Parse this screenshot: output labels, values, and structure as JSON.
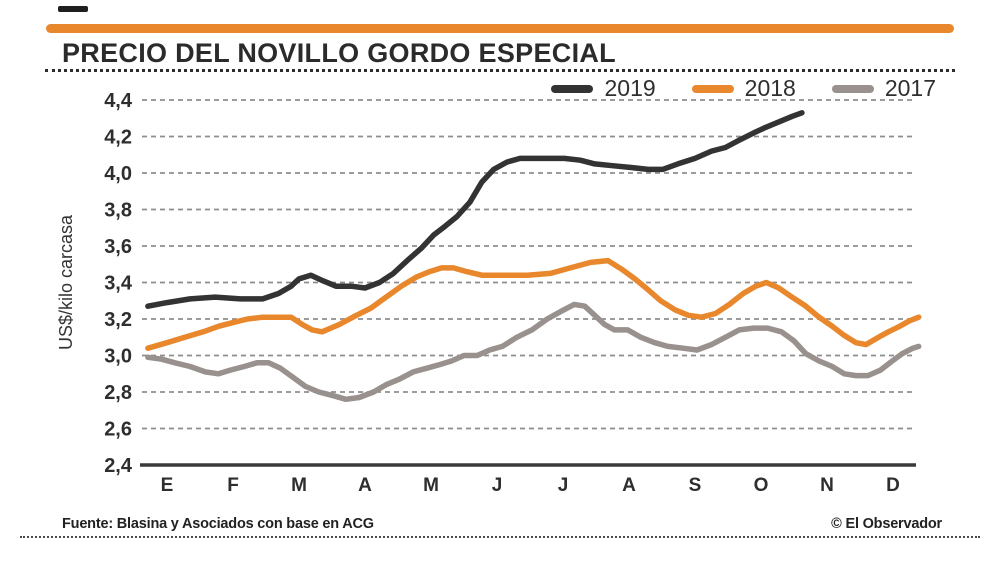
{
  "header": {
    "title": "PRECIO DEL NOVILLO GORDO ESPECIAL"
  },
  "theme": {
    "accent": "#E8872C",
    "grid_color": "#8e8e8e",
    "text_color": "#2e2e2e"
  },
  "footer": {
    "source": "Fuente: Blasina y Asociados con base en ACG",
    "credit": "© El Observador"
  },
  "chart_data": {
    "type": "line",
    "title": "PRECIO DEL NOVILLO GORDO ESPECIAL",
    "ylabel": "US$/kilo carcasa",
    "ylim": [
      2.4,
      4.4
    ],
    "grid": "horizontal dashed",
    "legend_position": "top-right",
    "x_unit": "month index (0 = E/enero ... 11 = D/diciembre)",
    "x_tick_labels": [
      "E",
      "F",
      "M",
      "A",
      "M",
      "J",
      "J",
      "A",
      "S",
      "O",
      "N",
      "D"
    ],
    "y_ticks": [
      {
        "label": "4,4",
        "value": 4.4
      },
      {
        "label": "4,2",
        "value": 4.2
      },
      {
        "label": "4,0",
        "value": 4.0
      },
      {
        "label": "3,8",
        "value": 3.8
      },
      {
        "label": "3,6",
        "value": 3.6
      },
      {
        "label": "3,4",
        "value": 3.4
      },
      {
        "label": "3,2",
        "value": 3.2
      },
      {
        "label": "3,0",
        "value": 3.0
      },
      {
        "label": "2,8",
        "value": 2.8
      },
      {
        "label": "2,6",
        "value": 2.6
      },
      {
        "label": "2,4",
        "value": 2.4
      }
    ],
    "series": [
      {
        "name": "2019",
        "color": "#333333",
        "points": [
          [
            -0.29,
            3.27
          ],
          [
            0,
            3.29
          ],
          [
            0.35,
            3.31
          ],
          [
            0.73,
            3.32
          ],
          [
            1.11,
            3.31
          ],
          [
            1.45,
            3.31
          ],
          [
            1.69,
            3.34
          ],
          [
            1.88,
            3.38
          ],
          [
            2,
            3.42
          ],
          [
            2.18,
            3.44
          ],
          [
            2.36,
            3.41
          ],
          [
            2.56,
            3.38
          ],
          [
            2.79,
            3.38
          ],
          [
            3,
            3.37
          ],
          [
            3.22,
            3.4
          ],
          [
            3.43,
            3.45
          ],
          [
            3.64,
            3.52
          ],
          [
            3.86,
            3.59
          ],
          [
            4.04,
            3.66
          ],
          [
            4.22,
            3.71
          ],
          [
            4.39,
            3.76
          ],
          [
            4.59,
            3.84
          ],
          [
            4.77,
            3.95
          ],
          [
            4.95,
            4.02
          ],
          [
            5.15,
            4.06
          ],
          [
            5.35,
            4.08
          ],
          [
            5.69,
            4.08
          ],
          [
            6.02,
            4.08
          ],
          [
            6.26,
            4.07
          ],
          [
            6.48,
            4.05
          ],
          [
            6.75,
            4.04
          ],
          [
            7.03,
            4.03
          ],
          [
            7.29,
            4.02
          ],
          [
            7.51,
            4.02
          ],
          [
            7.74,
            4.05
          ],
          [
            8,
            4.08
          ],
          [
            8.25,
            4.12
          ],
          [
            8.46,
            4.14
          ],
          [
            8.67,
            4.18
          ],
          [
            8.89,
            4.22
          ],
          [
            9.07,
            4.25
          ],
          [
            9.27,
            4.28
          ],
          [
            9.47,
            4.31
          ],
          [
            9.62,
            4.33
          ]
        ]
      },
      {
        "name": "2018",
        "color": "#E8872C",
        "points": [
          [
            -0.29,
            3.04
          ],
          [
            0,
            3.07
          ],
          [
            0.27,
            3.1
          ],
          [
            0.55,
            3.13
          ],
          [
            0.78,
            3.16
          ],
          [
            1,
            3.18
          ],
          [
            1.22,
            3.2
          ],
          [
            1.45,
            3.21
          ],
          [
            1.69,
            3.21
          ],
          [
            1.88,
            3.21
          ],
          [
            2.05,
            3.17
          ],
          [
            2.2,
            3.14
          ],
          [
            2.35,
            3.13
          ],
          [
            2.61,
            3.17
          ],
          [
            2.87,
            3.22
          ],
          [
            3.09,
            3.26
          ],
          [
            3.32,
            3.32
          ],
          [
            3.55,
            3.38
          ],
          [
            3.78,
            3.43
          ],
          [
            3.98,
            3.46
          ],
          [
            4.16,
            3.48
          ],
          [
            4.34,
            3.48
          ],
          [
            4.54,
            3.46
          ],
          [
            4.77,
            3.44
          ],
          [
            5.08,
            3.44
          ],
          [
            5.46,
            3.44
          ],
          [
            5.81,
            3.45
          ],
          [
            6.11,
            3.48
          ],
          [
            6.42,
            3.51
          ],
          [
            6.68,
            3.52
          ],
          [
            6.9,
            3.47
          ],
          [
            7.09,
            3.42
          ],
          [
            7.29,
            3.36
          ],
          [
            7.48,
            3.3
          ],
          [
            7.7,
            3.25
          ],
          [
            7.9,
            3.22
          ],
          [
            8.1,
            3.21
          ],
          [
            8.31,
            3.23
          ],
          [
            8.52,
            3.28
          ],
          [
            8.73,
            3.34
          ],
          [
            8.92,
            3.38
          ],
          [
            9.08,
            3.4
          ],
          [
            9.27,
            3.37
          ],
          [
            9.47,
            3.32
          ],
          [
            9.68,
            3.27
          ],
          [
            9.88,
            3.21
          ],
          [
            10.08,
            3.16
          ],
          [
            10.26,
            3.11
          ],
          [
            10.44,
            3.07
          ],
          [
            10.59,
            3.06
          ],
          [
            10.78,
            3.1
          ],
          [
            10.93,
            3.13
          ],
          [
            11.1,
            3.16
          ],
          [
            11.25,
            3.19
          ],
          [
            11.39,
            3.21
          ]
        ]
      },
      {
        "name": "2017",
        "color": "#99918D",
        "points": [
          [
            -0.29,
            2.99
          ],
          [
            -0.08,
            2.98
          ],
          [
            0.12,
            2.96
          ],
          [
            0.35,
            2.94
          ],
          [
            0.58,
            2.91
          ],
          [
            0.78,
            2.9
          ],
          [
            0.96,
            2.92
          ],
          [
            1.17,
            2.94
          ],
          [
            1.36,
            2.96
          ],
          [
            1.54,
            2.96
          ],
          [
            1.72,
            2.93
          ],
          [
            1.91,
            2.88
          ],
          [
            2.1,
            2.83
          ],
          [
            2.3,
            2.8
          ],
          [
            2.52,
            2.78
          ],
          [
            2.71,
            2.76
          ],
          [
            2.91,
            2.77
          ],
          [
            3.13,
            2.8
          ],
          [
            3.32,
            2.84
          ],
          [
            3.52,
            2.87
          ],
          [
            3.73,
            2.91
          ],
          [
            3.93,
            2.93
          ],
          [
            4.13,
            2.95
          ],
          [
            4.31,
            2.97
          ],
          [
            4.5,
            3
          ],
          [
            4.7,
            3
          ],
          [
            4.89,
            3.03
          ],
          [
            5.08,
            3.05
          ],
          [
            5.3,
            3.1
          ],
          [
            5.53,
            3.14
          ],
          [
            5.76,
            3.2
          ],
          [
            5.96,
            3.24
          ],
          [
            6.17,
            3.28
          ],
          [
            6.33,
            3.27
          ],
          [
            6.48,
            3.22
          ],
          [
            6.63,
            3.17
          ],
          [
            6.78,
            3.14
          ],
          [
            6.98,
            3.14
          ],
          [
            7.18,
            3.1
          ],
          [
            7.39,
            3.07
          ],
          [
            7.59,
            3.05
          ],
          [
            7.82,
            3.04
          ],
          [
            8.03,
            3.03
          ],
          [
            8.25,
            3.06
          ],
          [
            8.46,
            3.1
          ],
          [
            8.67,
            3.14
          ],
          [
            8.89,
            3.15
          ],
          [
            9.1,
            3.15
          ],
          [
            9.31,
            3.13
          ],
          [
            9.5,
            3.08
          ],
          [
            9.68,
            3.01
          ],
          [
            9.88,
            2.97
          ],
          [
            10.08,
            2.94
          ],
          [
            10.26,
            2.9
          ],
          [
            10.44,
            2.89
          ],
          [
            10.62,
            2.89
          ],
          [
            10.81,
            2.92
          ],
          [
            10.99,
            2.97
          ],
          [
            11.14,
            3.01
          ],
          [
            11.3,
            3.04
          ],
          [
            11.39,
            3.05
          ]
        ]
      }
    ]
  }
}
